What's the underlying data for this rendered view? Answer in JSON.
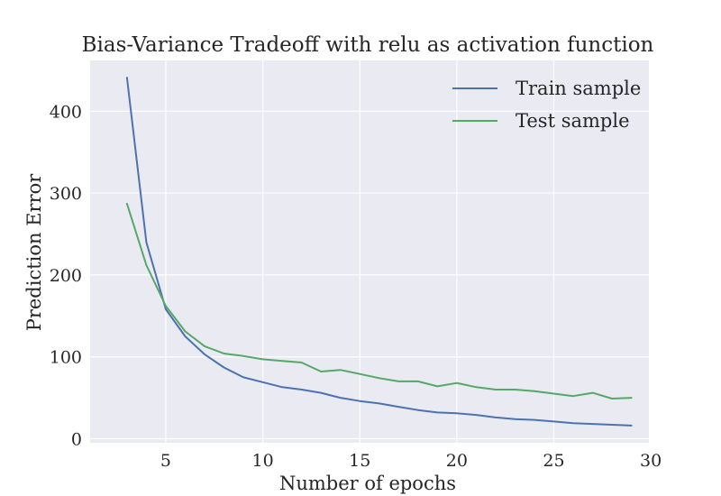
{
  "chart_data": {
    "type": "line",
    "title": "Bias-Variance Tradeoff with relu as activation function",
    "xlabel": "Number of epochs",
    "ylabel": "Prediction Error",
    "xlim": [
      1.1,
      29.9
    ],
    "ylim": [
      -5,
      462
    ],
    "xticks": [
      5,
      10,
      15,
      20,
      25,
      30
    ],
    "yticks": [
      0,
      100,
      200,
      300,
      400
    ],
    "grid": true,
    "legend_position": "top-right",
    "x": [
      3,
      4,
      5,
      6,
      7,
      8,
      9,
      10,
      11,
      12,
      13,
      14,
      15,
      16,
      17,
      18,
      19,
      20,
      21,
      22,
      23,
      24,
      25,
      26,
      27,
      28,
      29
    ],
    "series": [
      {
        "name": "Train sample",
        "color": "#4c72b0",
        "values": [
          441,
          240,
          158,
          125,
          103,
          87,
          75,
          69,
          63,
          60,
          56,
          50,
          46,
          43,
          39,
          35,
          32,
          31,
          29,
          26,
          24,
          23,
          21,
          19,
          18,
          17,
          16
        ]
      },
      {
        "name": "Test sample",
        "color": "#55a868",
        "values": [
          287,
          212,
          162,
          131,
          113,
          104,
          101,
          97,
          95,
          93,
          82,
          84,
          79,
          74,
          70,
          70,
          64,
          68,
          63,
          60,
          60,
          58,
          55,
          52,
          56,
          49,
          50
        ]
      }
    ],
    "background_color": "#eaeaf2"
  }
}
